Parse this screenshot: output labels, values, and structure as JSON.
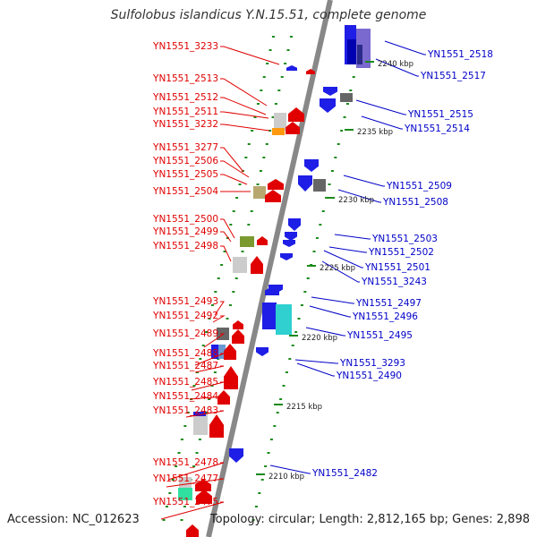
{
  "title": "Sulfolobus islandicus Y.N.15.51, complete genome",
  "accession": "Accession: NC_012623",
  "summary": "Topology: circular; Length: 2,812,165 bp; Genes: 2,898",
  "colors": {
    "left_label": "#e00000",
    "right_label": "#0000c8",
    "backbone": "#888888",
    "tick": "#1a8a1a"
  },
  "left_genes": [
    "YN1551_3233",
    "YN1551_2513",
    "YN1551_2512",
    "YN1551_2511",
    "YN1551_3232",
    "YN1551_3277",
    "YN1551_2506",
    "YN1551_2505",
    "YN1551_2504",
    "YN1551_2500",
    "YN1551_2499",
    "YN1551_2498",
    "YN1551_2493",
    "YN1551_2492",
    "YN1551_2489",
    "YN1551_2488",
    "YN1551_2487",
    "YN1551_2485",
    "YN1551_2484",
    "YN1551_2483",
    "YN1551_2478",
    "YN1551_2477",
    "YN1551_2475"
  ],
  "right_genes": [
    "YN1551_2518",
    "YN1551_2517",
    "YN1551_2515",
    "YN1551_2514",
    "YN1551_2509",
    "YN1551_2508",
    "YN1551_2503",
    "YN1551_2502",
    "YN1551_2501",
    "YN1551_3243",
    "YN1551_2497",
    "YN1551_2496",
    "YN1551_2495",
    "YN1551_3293",
    "YN1551_2490",
    "YN1551_2482"
  ],
  "scale_labels": [
    "2240 kbp",
    "2235 kbp",
    "2230 kbp",
    "2225 kbp",
    "2220 kbp",
    "2215 kbp",
    "2210 kbp"
  ]
}
